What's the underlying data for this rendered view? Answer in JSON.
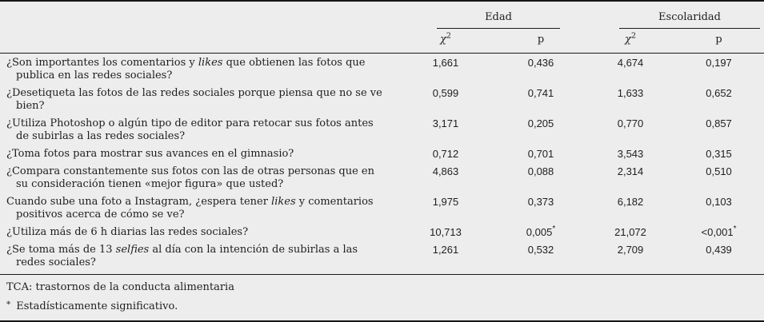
{
  "colors": {
    "background": "#ecedec",
    "rule": "#1a1a1a",
    "text": "#1e1e1e"
  },
  "table": {
    "groups": [
      {
        "label": "Edad"
      },
      {
        "label": "Escolaridad"
      }
    ],
    "sub_header": {
      "chi_base": "χ",
      "chi_sup": "2",
      "p_label": "p"
    },
    "rows": [
      {
        "q_pre": "¿Son importantes los comentarios y ",
        "q_em": "likes",
        "q_post": " que obtienen las fotos que publica en las redes sociales?",
        "edad_chi": "1,661",
        "edad_p": "0,436",
        "edad_p_star": "",
        "esc_chi": "4,674",
        "esc_p": "0,197",
        "esc_p_star": ""
      },
      {
        "q_pre": "¿Desetiqueta las fotos de las redes sociales porque piensa que no se ve bien?",
        "q_em": "",
        "q_post": "",
        "edad_chi": "0,599",
        "edad_p": "0,741",
        "edad_p_star": "",
        "esc_chi": "1,633",
        "esc_p": "0,652",
        "esc_p_star": ""
      },
      {
        "q_pre": "¿Utiliza Photoshop o algún tipo de editor para retocar sus fotos antes de subirlas a las redes sociales?",
        "q_em": "",
        "q_post": "",
        "edad_chi": "3,171",
        "edad_p": "0,205",
        "edad_p_star": "",
        "esc_chi": "0,770",
        "esc_p": "0,857",
        "esc_p_star": ""
      },
      {
        "q_pre": "¿Toma fotos para mostrar sus avances en el gimnasio?",
        "q_em": "",
        "q_post": "",
        "edad_chi": "0,712",
        "edad_p": "0,701",
        "edad_p_star": "",
        "esc_chi": "3,543",
        "esc_p": "0,315",
        "esc_p_star": ""
      },
      {
        "q_pre": "¿Compara constantemente sus fotos con las de otras personas que en su consideración tienen «mejor figura» que usted?",
        "q_em": "",
        "q_post": "",
        "edad_chi": "4,863",
        "edad_p": "0,088",
        "edad_p_star": "",
        "esc_chi": "2,314",
        "esc_p": "0,510",
        "esc_p_star": ""
      },
      {
        "q_pre": "Cuando sube una foto a Instagram, ¿espera tener ",
        "q_em": "likes",
        "q_post": " y comentarios positivos acerca de cómo se ve?",
        "edad_chi": "1,975",
        "edad_p": "0,373",
        "edad_p_star": "",
        "esc_chi": "6,182",
        "esc_p": "0,103",
        "esc_p_star": ""
      },
      {
        "q_pre": "¿Utiliza más de 6 h diarias las redes sociales?",
        "q_em": "",
        "q_post": "",
        "edad_chi": "10,713",
        "edad_p": "0,005",
        "edad_p_star": "*",
        "esc_chi": "21,072",
        "esc_p": "<0,001",
        "esc_p_star": "*"
      },
      {
        "q_pre": "¿Se toma más de 13 ",
        "q_em": "selfies",
        "q_post": " al día con la intención de subirlas a las redes sociales?",
        "edad_chi": "1,261",
        "edad_p": "0,532",
        "edad_p_star": "",
        "esc_chi": "2,709",
        "esc_p": "0,439",
        "esc_p_star": ""
      }
    ]
  },
  "footnotes": {
    "abbreviation": "TCA: trastornos de la conducta alimentaria",
    "significance_marker": "*",
    "significance": "Estadísticamente significativo."
  }
}
